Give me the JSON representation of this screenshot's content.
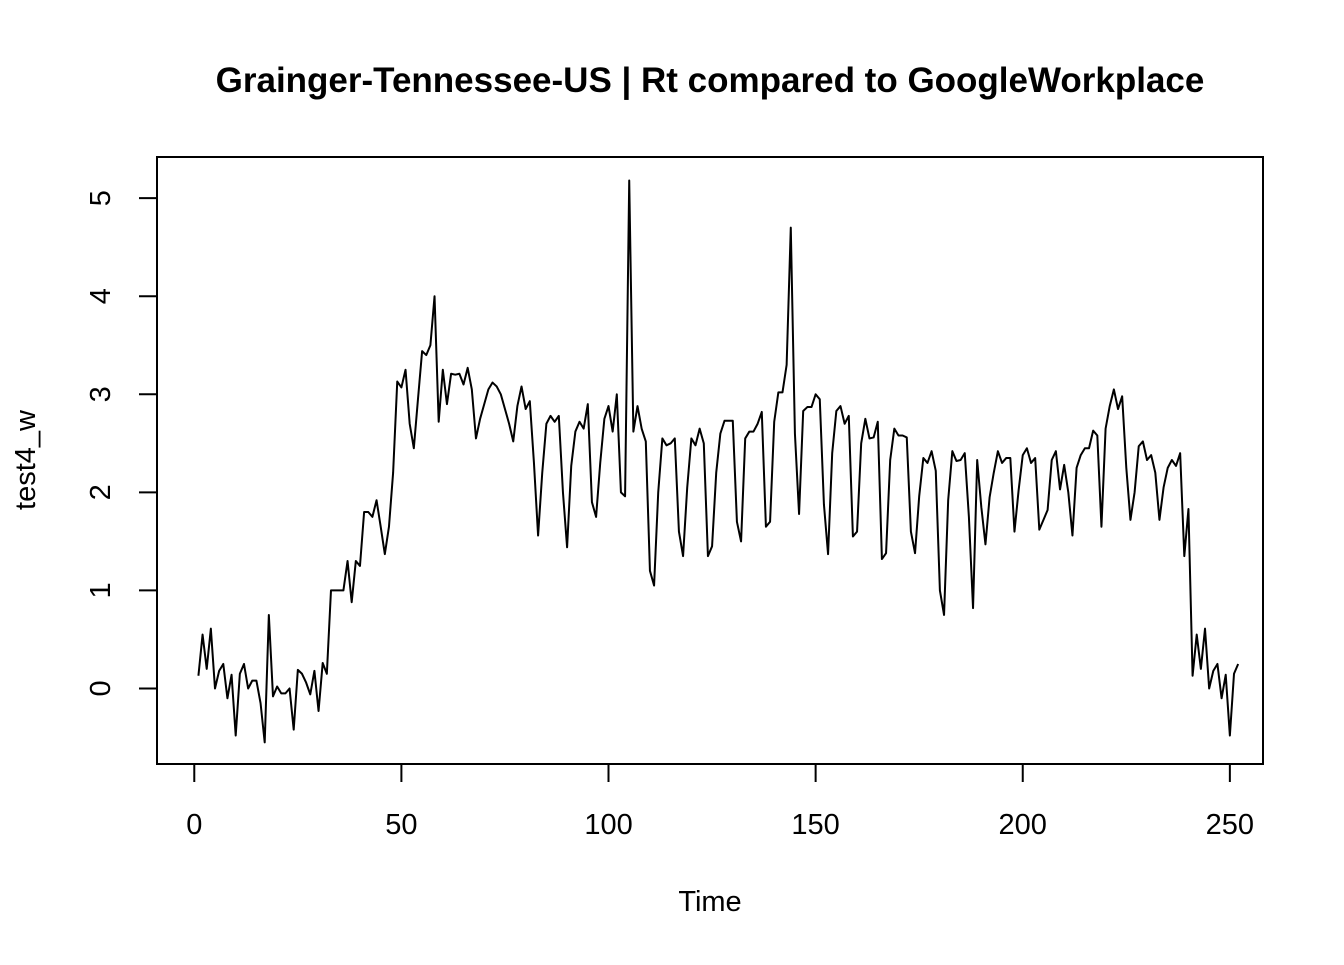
{
  "chart_data": {
    "type": "line",
    "title": "Grainger-Tennessee-US | Rt compared to GoogleWorkplace",
    "xlabel": "Time",
    "ylabel": "test4_w",
    "xlim": [
      -9,
      258
    ],
    "ylim": [
      -0.77,
      5.42
    ],
    "x_ticks": [
      0,
      50,
      100,
      150,
      200,
      250
    ],
    "x_tick_labels": [
      "0",
      "50",
      "100",
      "150",
      "200",
      "250"
    ],
    "y_ticks": [
      0,
      1,
      2,
      3,
      4,
      5
    ],
    "y_tick_labels": [
      "0",
      "1",
      "2",
      "3",
      "4",
      "5"
    ],
    "grid": false,
    "line_color": "#000000",
    "series": [
      {
        "x_start": 1,
        "values": [
          0.13,
          0.55,
          0.2,
          0.61,
          0.0,
          0.18,
          0.25,
          -0.1,
          0.14,
          -0.48,
          0.15,
          0.25,
          0.0,
          0.08,
          0.08,
          -0.15,
          -0.55,
          0.75,
          -0.08,
          0.02,
          -0.05,
          -0.05,
          0.0,
          -0.42,
          0.19,
          0.15,
          0.06,
          -0.06,
          0.18,
          -0.23,
          0.26,
          0.15,
          1.0,
          1.0,
          1.0,
          1.0,
          1.3,
          0.88,
          1.3,
          1.25,
          1.8,
          1.8,
          1.75,
          1.92,
          1.65,
          1.37,
          1.65,
          2.2,
          3.13,
          3.07,
          3.25,
          2.7,
          2.45,
          2.95,
          3.44,
          3.4,
          3.5,
          4.0,
          2.72,
          3.25,
          2.9,
          3.21,
          3.2,
          3.21,
          3.1,
          3.27,
          3.05,
          2.55,
          2.75,
          2.9,
          3.05,
          3.12,
          3.08,
          3.0,
          2.85,
          2.7,
          2.52,
          2.88,
          3.08,
          2.85,
          2.93,
          2.3,
          1.56,
          2.2,
          2.7,
          2.78,
          2.72,
          2.78,
          2.0,
          1.44,
          2.27,
          2.62,
          2.72,
          2.65,
          2.9,
          1.9,
          1.75,
          2.3,
          2.75,
          2.88,
          2.62,
          3.0,
          2.0,
          1.96,
          5.18,
          2.62,
          2.88,
          2.65,
          2.52,
          1.2,
          1.05,
          2.0,
          2.55,
          2.48,
          2.5,
          2.55,
          1.6,
          1.35,
          2.05,
          2.55,
          2.48,
          2.65,
          2.5,
          1.35,
          1.45,
          2.2,
          2.6,
          2.73,
          2.73,
          2.73,
          1.7,
          1.5,
          2.55,
          2.62,
          2.62,
          2.7,
          2.82,
          1.65,
          1.7,
          2.72,
          3.02,
          3.02,
          3.3,
          4.7,
          2.6,
          1.78,
          2.83,
          2.87,
          2.87,
          3.0,
          2.95,
          1.88,
          1.37,
          2.4,
          2.83,
          2.88,
          2.7,
          2.78,
          1.55,
          1.6,
          2.5,
          2.75,
          2.55,
          2.56,
          2.72,
          1.32,
          1.38,
          2.33,
          2.65,
          2.58,
          2.58,
          2.56,
          1.6,
          1.38,
          1.96,
          2.35,
          2.3,
          2.42,
          2.22,
          1.0,
          0.75,
          1.92,
          2.42,
          2.32,
          2.33,
          2.4,
          1.75,
          0.82,
          2.33,
          1.85,
          1.47,
          1.95,
          2.2,
          2.42,
          2.3,
          2.35,
          2.35,
          1.6,
          2.02,
          2.38,
          2.45,
          2.3,
          2.35,
          1.62,
          1.72,
          1.82,
          2.33,
          2.42,
          2.03,
          2.28,
          2.0,
          1.56,
          2.25,
          2.38,
          2.45,
          2.45,
          2.63,
          2.58,
          1.65,
          2.65,
          2.88,
          3.05,
          2.85,
          2.98,
          2.25,
          1.72,
          2.0,
          2.47,
          2.52,
          2.33,
          2.38,
          2.2,
          1.72,
          2.05,
          2.25,
          2.33,
          2.27,
          2.4,
          1.35,
          1.83,
          0.13,
          0.55,
          0.2,
          0.61,
          0.0,
          0.18,
          0.25,
          -0.1,
          0.14,
          -0.48,
          0.15,
          0.25
        ]
      }
    ]
  }
}
